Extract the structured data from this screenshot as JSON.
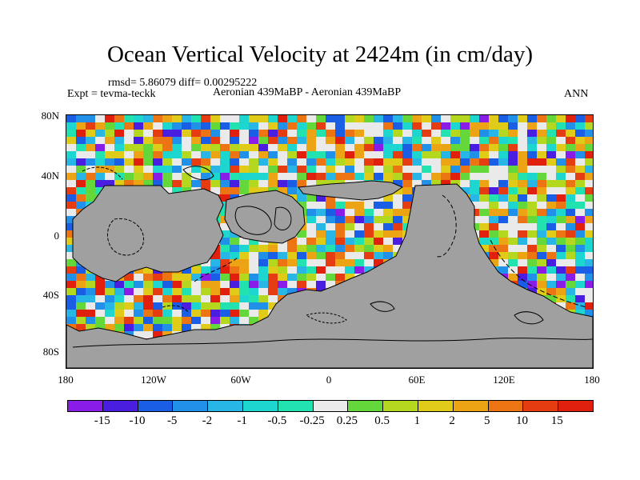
{
  "title": "Ocean Vertical Velocity at 2424m (in cm/day)",
  "stats": "rmsd= 5.86079  diff= 0.00295222",
  "expt": "Expt = tevma-teckk",
  "comparison": "Aeronian 439MaBP - Aeronian 439MaBP",
  "season": "ANN",
  "y_ticks": [
    "80N",
    "40N",
    "0",
    "40S",
    "80S"
  ],
  "x_ticks": [
    "180",
    "120W",
    "60W",
    "0",
    "60E",
    "120E",
    "180"
  ],
  "colorbar": {
    "labels": [
      "-15",
      "-10",
      "-5",
      "-2",
      "-1",
      "-0.5",
      "-0.25",
      "0.25",
      "0.5",
      "1",
      "2",
      "5",
      "10",
      "15"
    ],
    "colors": [
      "#8a1ce8",
      "#4a1ee0",
      "#1b5ee6",
      "#2090e8",
      "#27b6e6",
      "#1dd6cf",
      "#22e2b0",
      "#eaeaea",
      "#64d83a",
      "#b4d820",
      "#e0cb18",
      "#eca414",
      "#ec7412",
      "#e63c12",
      "#e0200c"
    ]
  },
  "colors": {
    "land": "#a0a0a0",
    "background": "#ffffff"
  }
}
